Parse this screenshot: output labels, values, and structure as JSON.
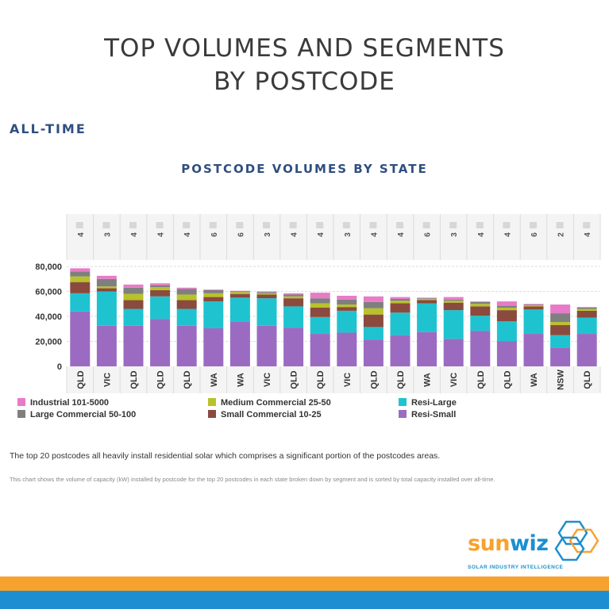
{
  "page": {
    "title_line1": "TOP VOLUMES AND SEGMENTS",
    "title_line2": "BY POSTCODE",
    "subtitle": "ALL-TIME",
    "note": "The top 20 postcodes all heavily install residential solar which comprises a significant portion of the postcodes areas.",
    "footnote": "This chart shows the volume of capacity (kW) installed by postcode for the top 20 postcodes in each state broken down by segment and is sorted by total capacity installed over all-time.",
    "logo": {
      "sun": "sun",
      "wiz": "wiz",
      "tagline": "SOLAR INDUSTRY INTELLIGENCE"
    },
    "colors": {
      "orange_band": "#f7a22e",
      "blue_band": "#1c8ed1",
      "title": "#3a3a3a",
      "heading": "#2f4f7f"
    }
  },
  "chart_data": {
    "type": "bar",
    "stacked": true,
    "title": "POSTCODE VOLUMES BY STATE",
    "xlabel": "",
    "ylabel": "",
    "ylim": [
      0,
      80000
    ],
    "yticks": [
      0,
      20000,
      40000,
      60000,
      80000
    ],
    "ytick_labels": [
      "0",
      "20,000",
      "40,000",
      "60,000",
      "80,000"
    ],
    "postcode_digits": [
      "4",
      "3",
      "4",
      "4",
      "4",
      "6",
      "6",
      "3",
      "4",
      "4",
      "3",
      "4",
      "4",
      "6",
      "3",
      "4",
      "4",
      "6",
      "2",
      "4"
    ],
    "categories": [
      "QLD",
      "VIC",
      "QLD",
      "QLD",
      "QLD",
      "WA",
      "WA",
      "VIC",
      "QLD",
      "QLD",
      "VIC",
      "QLD",
      "QLD",
      "WA",
      "VIC",
      "QLD",
      "QLD",
      "WA",
      "NSW",
      "QLD"
    ],
    "series": [
      {
        "name": "Resi-Small",
        "color": "#9b6bc2",
        "values": [
          44000,
          32500,
          32500,
          38000,
          32500,
          30500,
          36000,
          32500,
          31000,
          26000,
          27000,
          21500,
          25000,
          27500,
          22000,
          28500,
          20000,
          26000,
          15000,
          26000
        ]
      },
      {
        "name": "Resi-Large",
        "color": "#1fc3cf",
        "values": [
          14500,
          27500,
          13500,
          18000,
          13500,
          21500,
          19000,
          22000,
          17000,
          13500,
          17500,
          10000,
          18000,
          23000,
          23000,
          12000,
          16000,
          19500,
          10000,
          13000
        ]
      },
      {
        "name": "Small Commercial 10-25",
        "color": "#8b4a3e",
        "values": [
          9000,
          2500,
          7000,
          5000,
          7000,
          3500,
          3000,
          3000,
          6500,
          7500,
          3000,
          10000,
          7500,
          2500,
          6000,
          7500,
          9000,
          2500,
          8000,
          5500
        ]
      },
      {
        "name": "Medium Commercial 25-50",
        "color": "#b8c22b",
        "values": [
          4500,
          1500,
          5000,
          2500,
          4500,
          3000,
          1500,
          1000,
          1500,
          3500,
          2000,
          5000,
          2000,
          1000,
          1500,
          2000,
          2000,
          1000,
          2500,
          1500
        ]
      },
      {
        "name": "Large Commercial 50-100",
        "color": "#7f7f7f",
        "values": [
          4000,
          6000,
          5000,
          1500,
          4500,
          2500,
          500,
          1000,
          1500,
          4000,
          4000,
          5000,
          1500,
          500,
          1000,
          1500,
          1500,
          500,
          7000,
          1000
        ]
      },
      {
        "name": "Industrial 101-5000",
        "color": "#e87bc8",
        "values": [
          2500,
          2500,
          2500,
          1500,
          1000,
          500,
          500,
          500,
          1000,
          4500,
          3000,
          4500,
          1500,
          500,
          2000,
          500,
          3500,
          500,
          7000,
          500
        ]
      }
    ],
    "legend_placement": "bottom",
    "legend_order": [
      "Industrial 101-5000",
      "Medium Commercial 25-50",
      "Resi-Large",
      "Large Commercial 50-100",
      "Small Commercial 10-25",
      "Resi-Small"
    ],
    "grid": true
  }
}
